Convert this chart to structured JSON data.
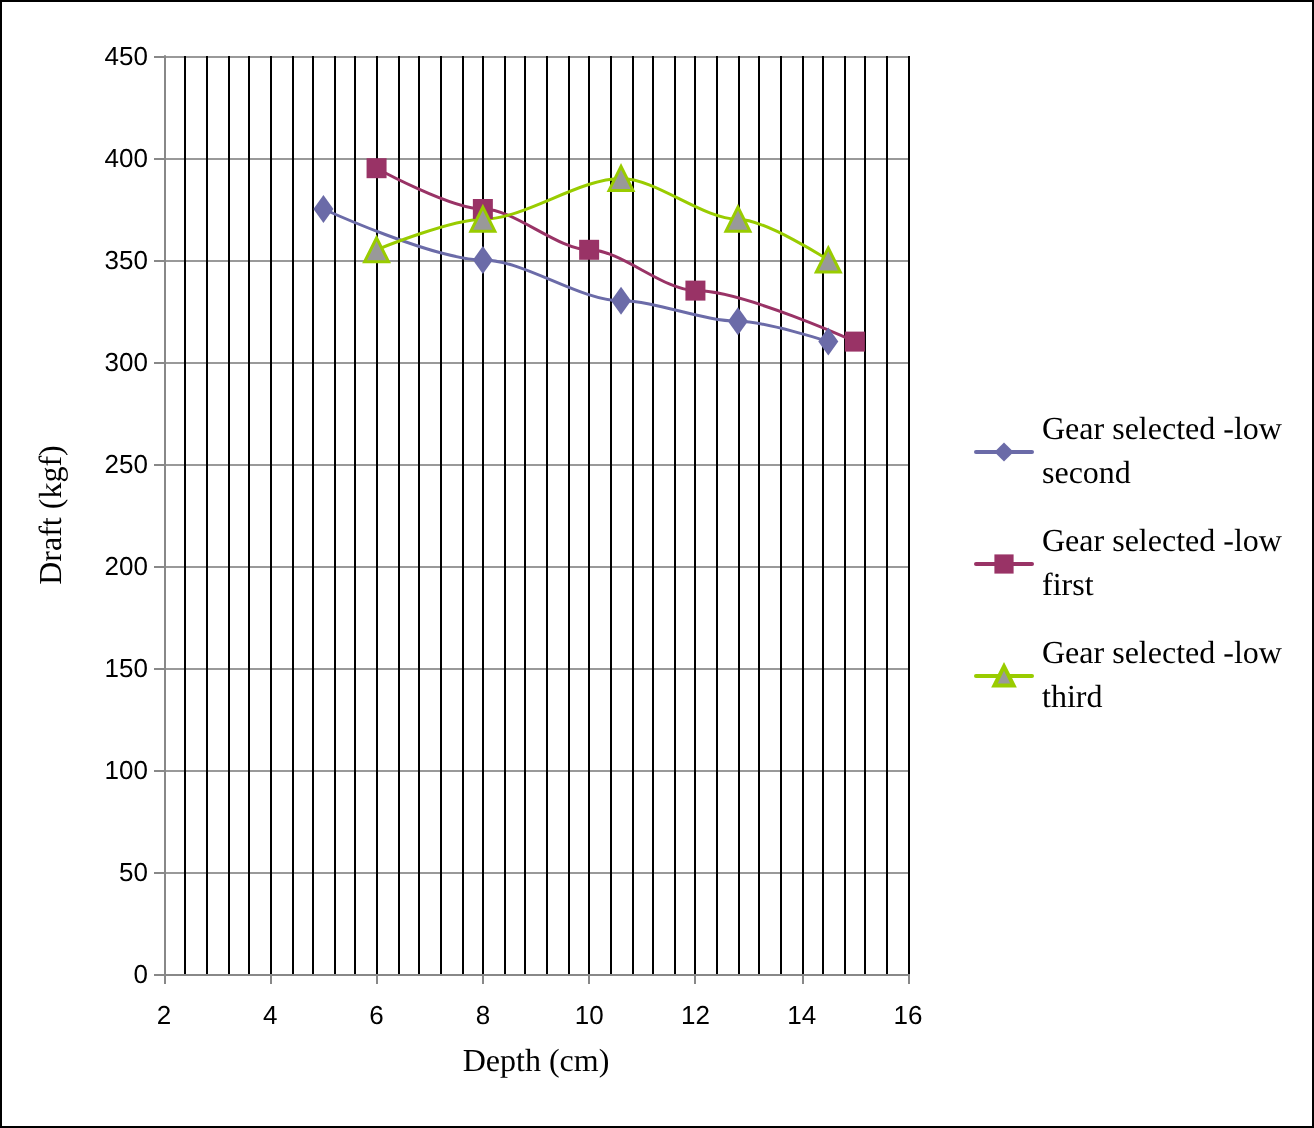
{
  "chart_data": {
    "type": "line",
    "xlabel": "Depth (cm)",
    "ylabel": "Draft (kgf)",
    "xlim": [
      2,
      16
    ],
    "xticks": [
      2,
      4,
      6,
      8,
      10,
      12,
      14,
      16
    ],
    "ylim": [
      0,
      450
    ],
    "yticks": [
      0,
      50,
      100,
      150,
      200,
      250,
      300,
      350,
      400,
      450
    ],
    "grid": true,
    "legend": "right",
    "series": [
      {
        "name": "Gear selected -low second",
        "color": "#6b6ba8",
        "marker": "diamond",
        "x": [
          5,
          8,
          10.6,
          12.8,
          14.5
        ],
        "values": [
          375,
          350,
          330,
          320,
          310
        ]
      },
      {
        "name": "Gear selected -low first",
        "color": "#993366",
        "marker": "square",
        "x": [
          6,
          8,
          10,
          12,
          15
        ],
        "values": [
          395,
          375,
          355,
          335,
          310
        ]
      },
      {
        "name": "Gear selected -low third",
        "color": "#99cc00",
        "marker": "triangle",
        "x": [
          6,
          8,
          10.6,
          12.8,
          14.5
        ],
        "values": [
          355,
          370,
          390,
          370,
          350
        ]
      }
    ]
  }
}
